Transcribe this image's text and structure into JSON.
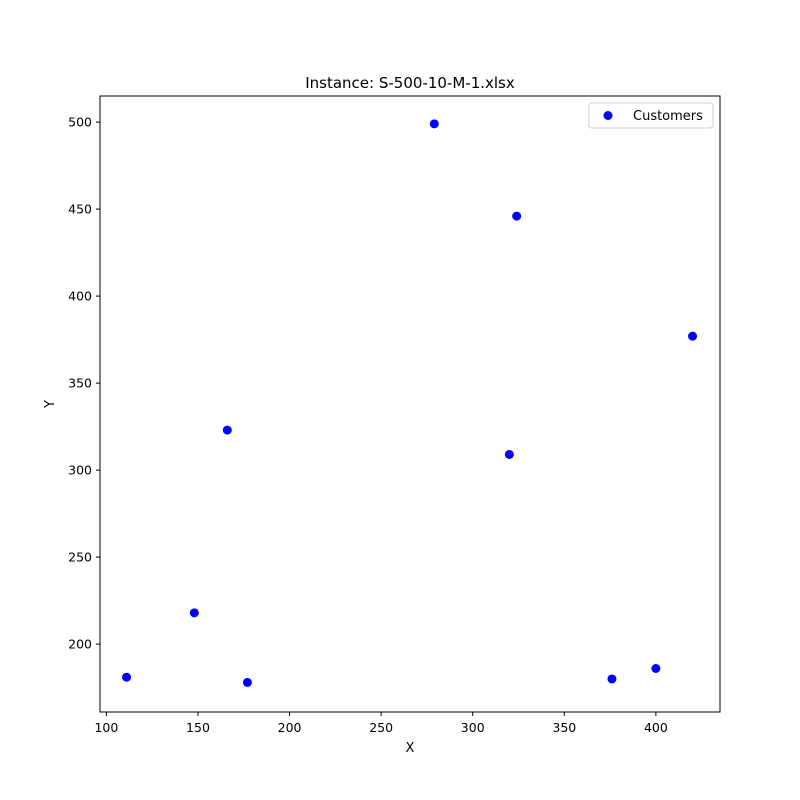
{
  "chart_data": {
    "type": "scatter",
    "title": "Instance: S-500-10-M-1.xlsx",
    "xlabel": "X",
    "ylabel": "Y",
    "xlim": [
      96.5,
      435.0
    ],
    "ylim": [
      161.0,
      515.0
    ],
    "xticks": [
      100,
      150,
      200,
      250,
      300,
      350,
      400
    ],
    "yticks": [
      200,
      250,
      300,
      350,
      400,
      450,
      500
    ],
    "grid": false,
    "legend_position": "top-right",
    "series": [
      {
        "name": "Customers",
        "color": "#0000ff",
        "marker": "circle",
        "points": [
          {
            "x": 279,
            "y": 499
          },
          {
            "x": 324,
            "y": 446
          },
          {
            "x": 420,
            "y": 377
          },
          {
            "x": 166,
            "y": 323
          },
          {
            "x": 320,
            "y": 309
          },
          {
            "x": 148,
            "y": 218
          },
          {
            "x": 111,
            "y": 181
          },
          {
            "x": 177,
            "y": 178
          },
          {
            "x": 376,
            "y": 180
          },
          {
            "x": 400,
            "y": 186
          }
        ]
      }
    ]
  }
}
